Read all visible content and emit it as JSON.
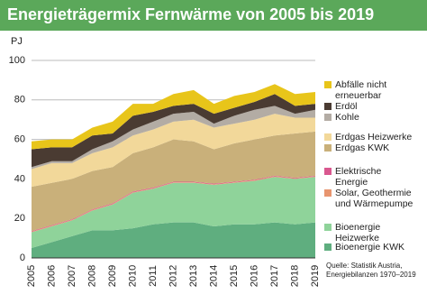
{
  "chart_data": {
    "type": "stacked_area",
    "title": "Energieträgermix Fernwärme von 2005 bis 2019",
    "y_label": "PJ",
    "source": "Quelle: Statistik Austria, Energiebilanzen 1970–2019",
    "categories": [
      "2005",
      "2006",
      "2007",
      "2008",
      "2009",
      "2010",
      "2011",
      "2012",
      "2013",
      "2014",
      "2015",
      "2016",
      "2017",
      "2018",
      "2019"
    ],
    "ylim": [
      0,
      100
    ],
    "yticks": [
      0,
      20,
      40,
      60,
      80,
      100
    ],
    "grid": true,
    "series": [
      {
        "name": "Bioenergie KWK",
        "color": "#5fae7f",
        "values": [
          5,
          8,
          11,
          14,
          14,
          15,
          17,
          18,
          18,
          16,
          17,
          17,
          18,
          17,
          18
        ]
      },
      {
        "name": "Bioenergie Heizwerke",
        "color": "#8fd39a",
        "values": [
          8,
          8,
          8,
          10,
          13,
          18,
          18,
          20,
          20,
          21,
          21,
          22,
          23,
          23,
          23
        ]
      },
      {
        "name": "Solar, Geothermie und Wärmepumpe",
        "color": "#e8956f",
        "values": [
          0.3,
          0.3,
          0.3,
          0.3,
          0.3,
          0.3,
          0.3,
          0.3,
          0.3,
          0.3,
          0.3,
          0.3,
          0.3,
          0.3,
          0.3
        ]
      },
      {
        "name": "Elektrische Energie",
        "color": "#d9588f",
        "values": [
          0.3,
          0.3,
          0.3,
          0.3,
          0.3,
          0.3,
          0.3,
          0.3,
          0.3,
          0.3,
          0.3,
          0.3,
          0.3,
          0.3,
          0.3
        ]
      },
      {
        "name": "Erdgas KWK",
        "color": "#c9b07a",
        "values": [
          22.4,
          21.4,
          20.4,
          19.4,
          18.4,
          19.4,
          20.4,
          21.4,
          20.4,
          17.4,
          19.4,
          20.4,
          20.4,
          22.4,
          22.4
        ]
      },
      {
        "name": "Erdgas Heizwerke",
        "color": "#f2d89a",
        "values": [
          9,
          10,
          8,
          9,
          10,
          9,
          9,
          9,
          11,
          11,
          10,
          10,
          11,
          8,
          7
        ]
      },
      {
        "name": "Kohle",
        "color": "#b3aca4",
        "values": [
          1,
          1,
          1,
          2,
          3,
          3,
          4,
          4,
          4,
          2,
          4,
          5,
          4,
          2,
          4
        ]
      },
      {
        "name": "Erdöl",
        "color": "#4a3b32",
        "values": [
          9,
          7,
          7,
          7,
          4,
          7,
          5,
          4,
          4,
          5,
          4,
          4,
          6,
          4,
          3
        ]
      },
      {
        "name": "Abfälle nicht erneuerbar",
        "color": "#e8c51a",
        "values": [
          4,
          4,
          4,
          4,
          6,
          6,
          4,
          6,
          7,
          5,
          6,
          5,
          5,
          6,
          6
        ]
      }
    ]
  }
}
